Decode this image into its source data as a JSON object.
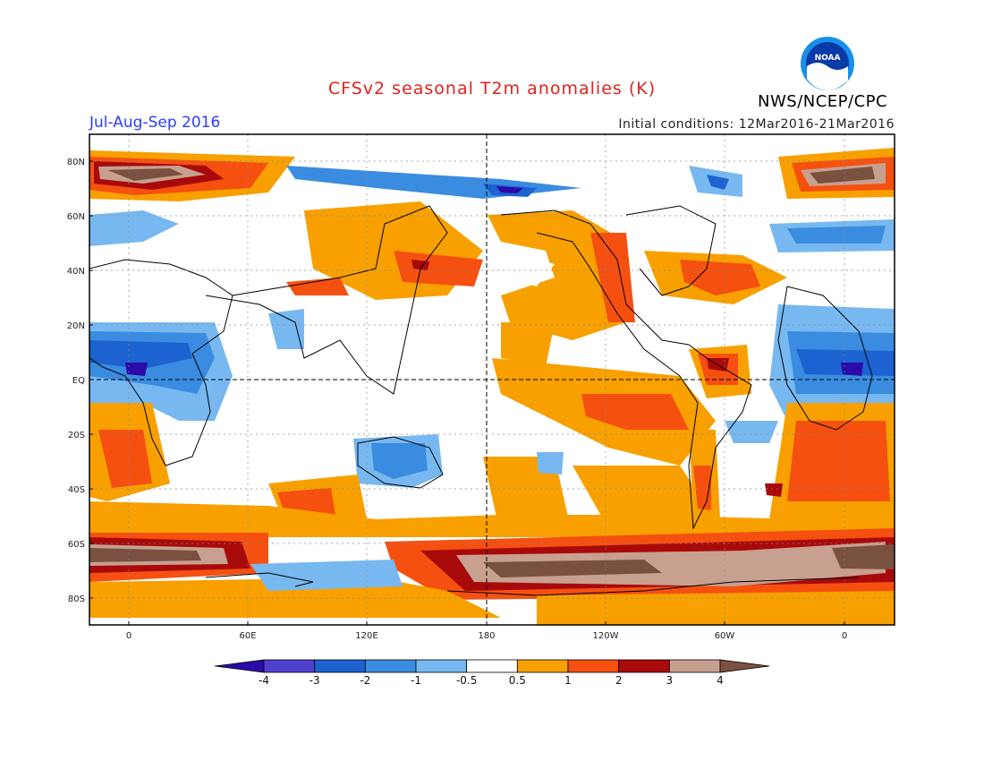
{
  "title": "CFSv2 seasonal T2m anomalies (K)",
  "season": "Jul-Aug-Sep 2016",
  "initial_conditions": "Initial conditions: 12Mar2016-21Mar2016",
  "agency": "NWS/NCEP/CPC",
  "logo_text": "NOAA",
  "map": {
    "lat_labels": [
      "80N",
      "60N",
      "40N",
      "20N",
      "EQ",
      "20S",
      "40S",
      "60S",
      "80S"
    ],
    "lon_labels": [
      "0",
      "60E",
      "120E",
      "180",
      "120W",
      "60W",
      "0"
    ]
  },
  "colorbar": {
    "labels": [
      "-4",
      "-3",
      "-2",
      "-1",
      "-0.5",
      "0.5",
      "1",
      "2",
      "3",
      "4"
    ],
    "colors": [
      "#2a0aa8",
      "#5040d0",
      "#1c62d0",
      "#3a8ce0",
      "#78b8f0",
      "#ffffff",
      "#f7a000",
      "#f55010",
      "#a80a0a",
      "#c8a090",
      "#7a5040"
    ]
  }
}
